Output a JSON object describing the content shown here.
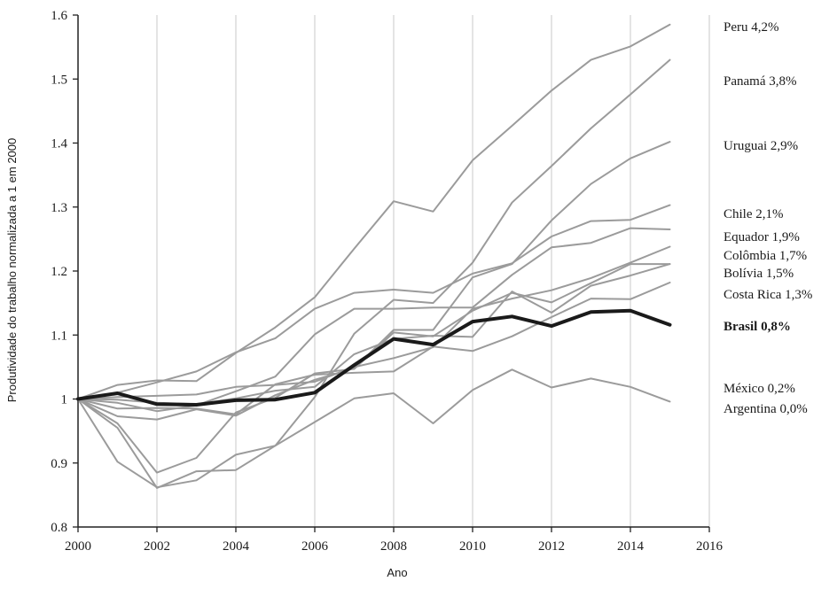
{
  "chart_data": {
    "type": "line",
    "title": "",
    "xlabel": "Ano",
    "ylabel": "Produtividade do trabalho normalizada a 1 em 2000",
    "xlim": [
      2000,
      2016
    ],
    "ylim": [
      0.8,
      1.6
    ],
    "x_ticks": [
      "2000",
      "2002",
      "2004",
      "2006",
      "2008",
      "2010",
      "2012",
      "2014",
      "2016"
    ],
    "y_ticks": [
      "0.8",
      "0.9",
      "1",
      "1.1",
      "1.2",
      "1.3",
      "1.4",
      "1.5",
      "1.6"
    ],
    "grid": "vertical",
    "x": [
      2000,
      2001,
      2002,
      2003,
      2004,
      2005,
      2006,
      2007,
      2008,
      2009,
      2010,
      2011,
      2012,
      2013,
      2014,
      2015
    ],
    "series": [
      {
        "name": "Peru 4,2%",
        "color": "#9b9b9b",
        "highlight": false,
        "values": [
          1.0,
          1.022,
          1.029,
          1.028,
          1.072,
          1.112,
          1.159,
          1.235,
          1.309,
          1.293,
          1.373,
          1.427,
          1.482,
          1.53,
          1.551,
          1.585
        ]
      },
      {
        "name": "Panamá 3,8%",
        "color": "#9b9b9b",
        "highlight": false,
        "values": [
          1.0,
          0.902,
          0.862,
          0.873,
          0.913,
          0.927,
          1.003,
          1.102,
          1.155,
          1.15,
          1.213,
          1.307,
          1.364,
          1.423,
          1.476,
          1.53
        ]
      },
      {
        "name": "Uruguai 2,9%",
        "color": "#9b9b9b",
        "highlight": false,
        "values": [
          1.0,
          0.973,
          0.968,
          0.984,
          0.974,
          1.006,
          1.03,
          1.048,
          1.108,
          1.108,
          1.19,
          1.211,
          1.279,
          1.336,
          1.376,
          1.402
        ]
      },
      {
        "name": "Chile 2,1%",
        "color": "#9b9b9b",
        "highlight": false,
        "values": [
          1.0,
          1.01,
          1.026,
          1.043,
          1.073,
          1.095,
          1.141,
          1.166,
          1.171,
          1.166,
          1.196,
          1.212,
          1.254,
          1.278,
          1.28,
          1.303
        ]
      },
      {
        "name": "Equador 1,9%",
        "color": "#9b9b9b",
        "highlight": false,
        "values": [
          1.0,
          0.994,
          0.981,
          0.99,
          1.012,
          1.035,
          1.101,
          1.141,
          1.141,
          1.143,
          1.143,
          1.194,
          1.237,
          1.244,
          1.267,
          1.265
        ]
      },
      {
        "name": "Colômbia 1,7%",
        "color": "#9b9b9b",
        "highlight": false,
        "values": [
          1.0,
          0.955,
          0.861,
          0.887,
          0.889,
          0.927,
          0.964,
          1.001,
          1.009,
          0.962,
          1.014,
          1.046,
          1.018,
          1.032,
          1.019,
          0.996
        ]
      },
      {
        "name": "Bolívia 1,5%",
        "color": "#9b9b9b",
        "highlight": false,
        "values": [
          1.0,
          1.003,
          1.005,
          1.007,
          1.019,
          1.022,
          1.027,
          1.05,
          1.064,
          1.081,
          1.141,
          1.157,
          1.17,
          1.189,
          1.213,
          1.238
        ]
      },
      {
        "name": "Costa Rica 1,3%",
        "color": "#9b9b9b",
        "highlight": false,
        "values": [
          1.0,
          0.985,
          0.986,
          0.985,
          0.976,
          1.023,
          1.038,
          1.041,
          1.043,
          1.082,
          1.075,
          1.098,
          1.128,
          1.157,
          1.156,
          1.182
        ]
      },
      {
        "name": "Brasil 0,8%",
        "color": "#1a1a1a",
        "highlight": true,
        "values": [
          1.0,
          1.009,
          0.992,
          0.991,
          0.998,
          0.999,
          1.01,
          1.053,
          1.094,
          1.085,
          1.121,
          1.129,
          1.114,
          1.136,
          1.138,
          1.116
        ]
      },
      {
        "name": "México 0,2%",
        "color": "#9b9b9b",
        "highlight": false,
        "values": [
          1.0,
          0.999,
          0.994,
          0.992,
          1.001,
          1.013,
          1.019,
          1.07,
          1.094,
          1.099,
          1.097,
          1.168,
          1.135,
          1.177,
          1.193,
          1.211
        ]
      },
      {
        "name": "Argentina 0,0%",
        "color": "#9b9b9b",
        "highlight": false,
        "values": [
          1.0,
          0.962,
          0.885,
          0.908,
          0.979,
          1.002,
          1.04,
          1.047,
          1.104,
          1.098,
          1.138,
          1.166,
          1.151,
          1.181,
          1.211,
          1.211
        ]
      }
    ]
  }
}
